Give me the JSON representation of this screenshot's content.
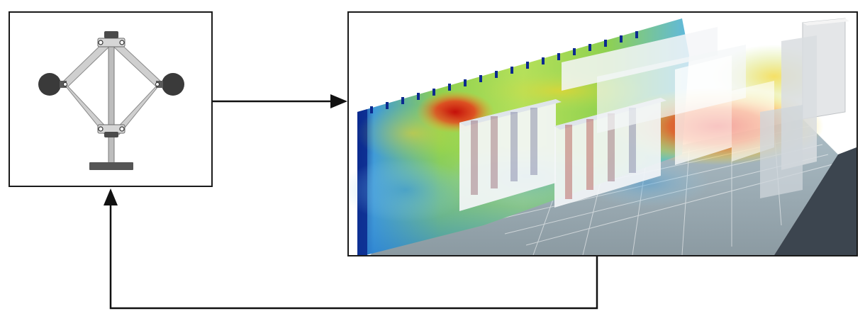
{
  "diagram": {
    "nodes": [
      {
        "id": "governor",
        "label": "",
        "depicts": "centrifugal-governor-mechanism"
      },
      {
        "id": "cfd",
        "label": "",
        "depicts": "data-center-thermal-heatmap"
      }
    ],
    "edges": [
      {
        "from": "governor",
        "to": "cfd",
        "label": ""
      },
      {
        "from": "cfd",
        "to": "governor",
        "label": ""
      }
    ],
    "colors": {
      "line": "#111111",
      "frame": "#1a1a1a",
      "hot": "#e02010",
      "warm": "#f5a623",
      "mid": "#8fd14f",
      "cool": "#3f9ad8",
      "cold": "#0b2a8f",
      "rack": "#f4f6f8",
      "mechanism_link": "#c9c9c9",
      "mechanism_dark": "#3a3a3a"
    }
  }
}
